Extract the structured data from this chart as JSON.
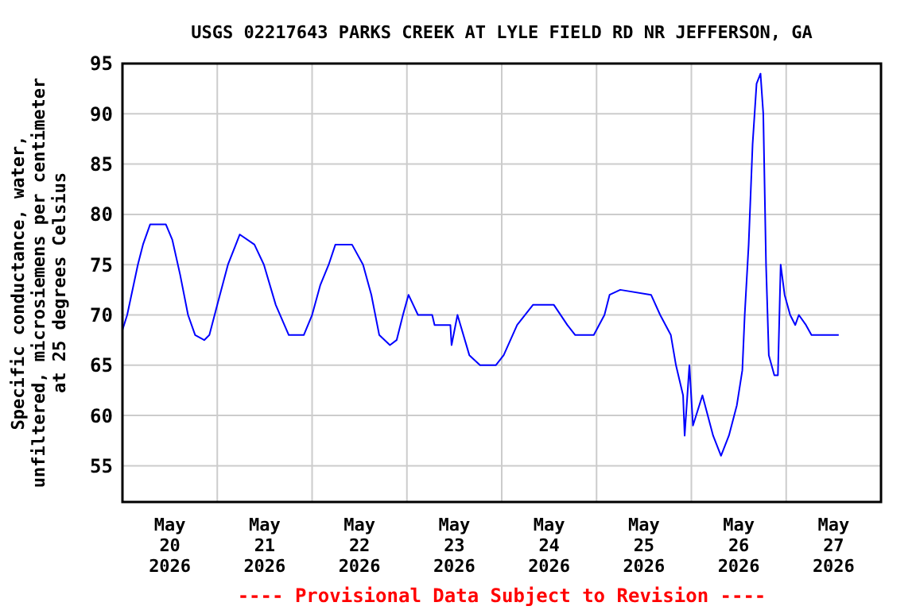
{
  "chart_data": {
    "type": "line",
    "title": "USGS 02217643 PARKS CREEK AT LYLE FIELD RD NR JEFFERSON, GA",
    "ylabel": "Specific conductance, water,\nunfiltered, microsiemens per centimeter\nat 25 degrees Celsius",
    "annotations": [
      "---- Provisional Data Subject to Revision ----"
    ],
    "xlim": [
      "2026-05-20T00:00",
      "2026-05-28T00:00"
    ],
    "xticks": [
      {
        "value": "2026-05-20T00:00",
        "label": null
      },
      {
        "value": "2026-05-20T12:00",
        "label": "May\n20\n2026"
      },
      {
        "value": "2026-05-21T00:00",
        "label": null
      },
      {
        "value": "2026-05-21T12:00",
        "label": "May\n21\n2026"
      },
      {
        "value": "2026-05-22T00:00",
        "label": null
      },
      {
        "value": "2026-05-22T12:00",
        "label": "May\n22\n2026"
      },
      {
        "value": "2026-05-23T00:00",
        "label": null
      },
      {
        "value": "2026-05-23T12:00",
        "label": "May\n23\n2026"
      },
      {
        "value": "2026-05-24T00:00",
        "label": null
      },
      {
        "value": "2026-05-24T12:00",
        "label": "May\n24\n2026"
      },
      {
        "value": "2026-05-25T00:00",
        "label": null
      },
      {
        "value": "2026-05-25T12:00",
        "label": "May\n25\n2026"
      },
      {
        "value": "2026-05-26T00:00",
        "label": null
      },
      {
        "value": "2026-05-26T12:00",
        "label": "May\n26\n2026"
      },
      {
        "value": "2026-05-27T00:00",
        "label": null
      },
      {
        "value": "2026-05-27T12:00",
        "label": "May\n27\n2026"
      },
      {
        "value": "2026-05-28T00:00",
        "label": null
      }
    ],
    "ylim": [
      51.4,
      95
    ],
    "yticks": [
      55,
      60,
      65,
      70,
      75,
      80,
      85,
      90,
      95
    ],
    "grid": true,
    "marker": "none",
    "line_style": "solid",
    "series": [
      {
        "color": "#0000ff",
        "x": [
          "2026-05-20T00:00",
          "2026-05-20T01:12",
          "2026-05-20T03:54",
          "2026-05-20T05:12",
          "2026-05-20T07:00",
          "2026-05-20T11:00",
          "2026-05-20T12:36",
          "2026-05-20T14:36",
          "2026-05-20T16:36",
          "2026-05-20T18:24",
          "2026-05-20T20:42",
          "2026-05-20T22:00",
          "2026-05-21T00:00",
          "2026-05-21T02:42",
          "2026-05-21T04:42",
          "2026-05-21T05:42",
          "2026-05-21T09:24",
          "2026-05-21T11:48",
          "2026-05-21T14:48",
          "2026-05-21T18:06",
          "2026-05-21T21:54",
          "2026-05-22T00:00",
          "2026-05-22T02:06",
          "2026-05-22T04:12",
          "2026-05-22T05:54",
          "2026-05-22T10:06",
          "2026-05-22T12:54",
          "2026-05-22T15:00",
          "2026-05-22T17:00",
          "2026-05-22T19:42",
          "2026-05-22T21:24",
          "2026-05-22T23:00",
          "2026-05-23T00:24",
          "2026-05-23T02:48",
          "2026-05-23T06:24",
          "2026-05-23T07:00",
          "2026-05-23T11:00",
          "2026-05-23T11:18",
          "2026-05-23T12:48",
          "2026-05-23T15:48",
          "2026-05-23T18:30",
          "2026-05-23T22:30",
          "2026-05-24T00:30",
          "2026-05-24T03:54",
          "2026-05-24T07:54",
          "2026-05-24T13:12",
          "2026-05-24T16:36",
          "2026-05-24T18:36",
          "2026-05-24T23:18",
          "2026-05-25T02:00",
          "2026-05-25T03:18",
          "2026-05-25T06:00",
          "2026-05-25T13:48",
          "2026-05-25T16:06",
          "2026-05-25T18:48",
          "2026-05-25T20:06",
          "2026-05-25T21:54",
          "2026-05-25T22:18",
          "2026-05-25T23:30",
          "2026-05-26T00:24",
          "2026-05-26T02:48",
          "2026-05-26T05:30",
          "2026-05-26T07:30",
          "2026-05-26T09:30",
          "2026-05-26T11:30",
          "2026-05-26T12:54",
          "2026-05-26T13:30",
          "2026-05-26T14:30",
          "2026-05-26T15:30",
          "2026-05-26T16:30",
          "2026-05-26T17:30",
          "2026-05-26T18:12",
          "2026-05-26T18:54",
          "2026-05-26T19:36",
          "2026-05-26T21:00",
          "2026-05-26T21:54",
          "2026-05-26T22:36",
          "2026-05-26T23:36",
          "2026-05-27T01:00",
          "2026-05-27T02:18",
          "2026-05-27T03:12",
          "2026-05-27T05:00",
          "2026-05-27T06:24",
          "2026-05-27T13:18"
        ],
        "values": [
          68.5,
          70,
          75,
          77,
          79,
          79,
          77.5,
          74,
          70,
          68,
          67.5,
          68,
          71,
          75,
          77,
          78,
          77,
          75,
          71,
          68,
          68,
          70,
          73,
          75,
          77,
          77,
          75,
          72,
          68,
          67,
          67.5,
          70,
          72,
          70,
          70,
          69,
          69,
          67,
          70,
          66,
          65,
          65,
          66,
          69,
          71,
          71,
          69,
          68,
          68,
          70,
          72,
          72.5,
          72,
          70,
          68,
          65,
          62,
          58,
          65,
          59,
          62,
          58,
          56,
          58,
          61,
          64.5,
          70,
          77,
          87,
          93,
          94,
          90,
          75,
          66,
          64,
          64,
          75,
          72,
          70,
          69,
          70,
          69,
          68,
          68
        ]
      }
    ]
  }
}
